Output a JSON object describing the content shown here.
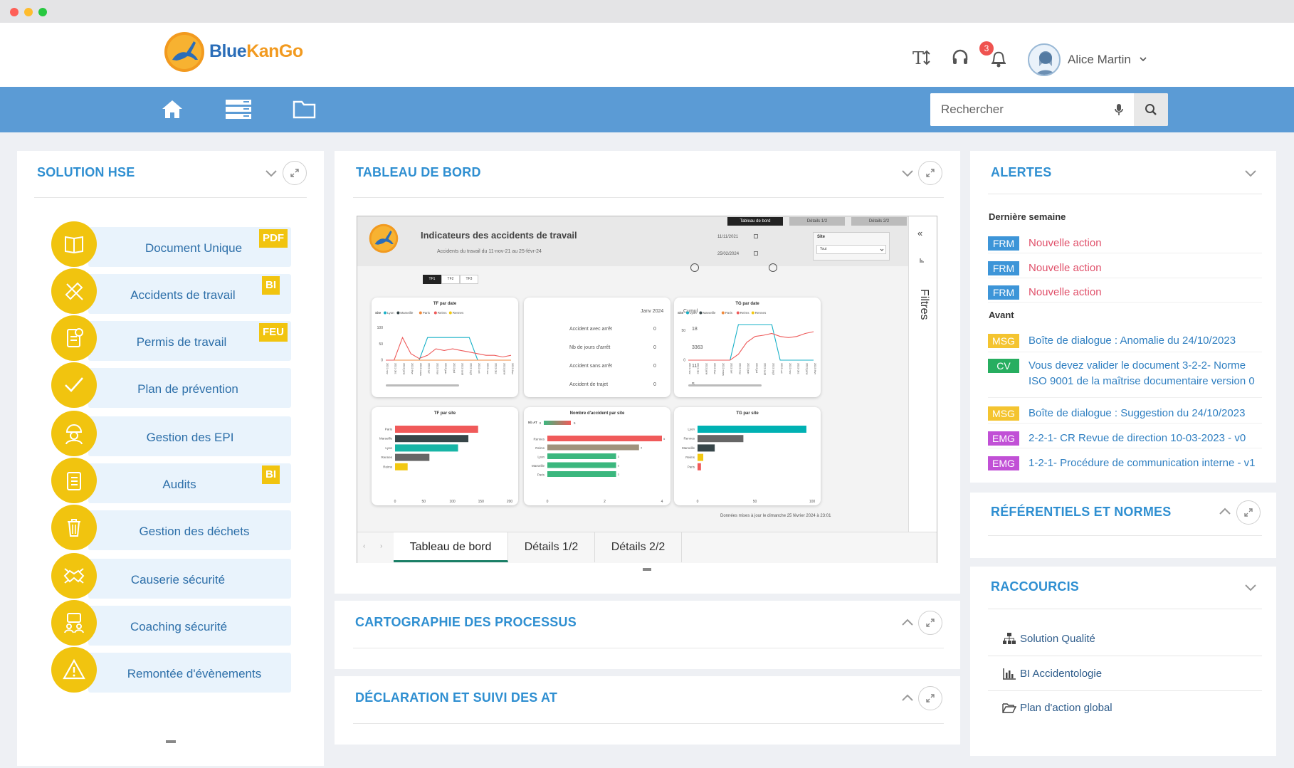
{
  "app": {
    "logo_text": "BlueKanGo"
  },
  "header": {
    "text_size_icon": "text-size-icon",
    "support_icon": "headset-icon",
    "notifications_count": "3",
    "user_name": "Alice Martin"
  },
  "search": {
    "placeholder": "Rechercher"
  },
  "hse": {
    "title": "SOLUTION HSE",
    "items": [
      {
        "label": "Document Unique",
        "badge": "PDF",
        "icon": "book-icon"
      },
      {
        "label": "Accidents de travail",
        "badge": "BI",
        "icon": "bandage-icon"
      },
      {
        "label": "Permis de travail",
        "badge": "FEU",
        "icon": "permit-icon"
      },
      {
        "label": "Plan de prévention",
        "badge": "",
        "icon": "check-icon"
      },
      {
        "label": "Gestion des EPI",
        "badge": "",
        "icon": "worker-helmet-icon"
      },
      {
        "label": "Audits",
        "badge": "BI",
        "icon": "clipboard-icon"
      },
      {
        "label": "Gestion des déchets",
        "badge": "",
        "icon": "trash-icon"
      },
      {
        "label": "Causerie sécurité",
        "badge": "",
        "icon": "handshake-icon"
      },
      {
        "label": "Coaching sécurité",
        "badge": "",
        "icon": "coaching-icon"
      },
      {
        "label": "Remontée d'évènements",
        "badge": "",
        "icon": "warning-icon"
      }
    ]
  },
  "dashboard": {
    "title": "TABLEAU DE BORD",
    "report_title": "Indicateurs des accidents de travail",
    "report_subtitle": "Accidents du travail du 11-nov-21 au 25-févr-24",
    "top_tabs": [
      "Tableau de bord",
      "Détails 1/2",
      "Détails 2/2"
    ],
    "date_from": "11/11/2021",
    "date_to": "25/02/2024",
    "site_label": "Site",
    "site_value": "Tout",
    "toggle": [
      "TF1",
      "TF2",
      "TF3"
    ],
    "filters_label": "Filtres",
    "legend": {
      "label": "Site",
      "items": [
        "Lyon",
        "Marseille",
        "Paris",
        "Reims",
        "Rennes"
      ]
    },
    "stats": {
      "headers": [
        "Janv 2024",
        "Cumul"
      ],
      "rows": [
        {
          "label": "Accident avec arrêt",
          "v1": "0",
          "v2": "18"
        },
        {
          "label": "Nb de jours d'arrêt",
          "v1": "0",
          "v2": "3363"
        },
        {
          "label": "Accident sans arrêt",
          "v1": "0",
          "v2": "11"
        },
        {
          "label": "Accident de trajet",
          "v1": "0",
          "v2": "5"
        }
      ]
    },
    "updated_note": "Données mises à jour le dimanche 25 février 2024 à 23:01",
    "bottom_tabs": [
      "Tableau de bord",
      "Détails 1/2",
      "Détails 2/2"
    ]
  },
  "chart_data": [
    {
      "type": "line",
      "title": "TF par date",
      "yticks": [
        "100",
        "50",
        "0"
      ],
      "x": [
        "2021 nov",
        "2021 déc",
        "2022 janv",
        "2022 févr",
        "2022 mars",
        "2022 avr",
        "2022 mai",
        "2022 juin",
        "2022 juil",
        "2022 août",
        "2022 sept",
        "2022 oct",
        "2022 nov",
        "2022 déc",
        "2023 janv",
        "2023 févr"
      ],
      "series": [
        {
          "name": "Lyon",
          "color": "#17b0c7",
          "values": [
            0,
            0,
            0,
            0,
            0,
            70,
            70,
            70,
            70,
            70,
            70,
            0,
            0,
            0,
            0,
            0
          ]
        },
        {
          "name": "Paris",
          "color": "#f08a3c",
          "values": [
            0,
            0,
            0,
            0,
            0,
            0,
            0,
            0,
            0,
            0,
            0,
            0,
            0,
            0,
            0,
            0
          ]
        },
        {
          "name": "Reims",
          "color": "#ee5a5a",
          "values": [
            0,
            0,
            70,
            20,
            5,
            15,
            35,
            30,
            35,
            30,
            25,
            20,
            15,
            15,
            10,
            15
          ]
        }
      ]
    },
    {
      "type": "line",
      "title": "TG par date",
      "yticks": [
        "50",
        "0"
      ],
      "x": [
        "2021 nov",
        "2021 déc",
        "2022 janv",
        "2022 févr",
        "2022 mars",
        "2022 avr",
        "2022 mai",
        "2022 juin",
        "2022 juil",
        "2022 août",
        "2022 sept",
        "2022 oct",
        "2022 nov",
        "2022 déc",
        "2023 janv",
        "2023 févr"
      ],
      "series": [
        {
          "name": "Lyon",
          "color": "#17b0c7",
          "values": [
            0,
            0,
            0,
            0,
            0,
            0,
            60,
            60,
            60,
            60,
            60,
            0,
            0,
            0,
            0,
            0
          ]
        },
        {
          "name": "Reims",
          "color": "#ee5a5a",
          "values": [
            0,
            0,
            0,
            0,
            0,
            0,
            10,
            30,
            40,
            42,
            45,
            40,
            38,
            40,
            45,
            48
          ]
        }
      ]
    },
    {
      "type": "bar",
      "title": "TF par site",
      "categories": [
        "Paris",
        "Marseille",
        "Lyon",
        "Rennes",
        "Reims"
      ],
      "values": [
        145,
        128,
        110,
        60,
        22
      ],
      "colors": [
        "#f05a5a",
        "#374649",
        "#17b5a6",
        "#666666",
        "#f2c811"
      ],
      "xticks": [
        "0",
        "50",
        "100",
        "150",
        "200"
      ],
      "xlim": [
        0,
        200
      ]
    },
    {
      "type": "bar",
      "title": "Nombre d'accident par site",
      "legend_label": "Nb AT",
      "legend_min": "3",
      "legend_max": "5",
      "categories": [
        "Rennes",
        "Reims",
        "Lyon",
        "Marseille",
        "Paris"
      ],
      "values": [
        5,
        4,
        3,
        3,
        3
      ],
      "colors": [
        "#f05a5a",
        "#a0937d",
        "#3bb77e",
        "#3bb77e",
        "#3bb77e"
      ],
      "xticks": [
        "0",
        "2",
        "4"
      ],
      "xlim": [
        0,
        5
      ]
    },
    {
      "type": "bar",
      "title": "TG par site",
      "categories": [
        "Lyon",
        "Rennes",
        "Marseille",
        "Reims",
        "Paris"
      ],
      "values": [
        95,
        40,
        15,
        5,
        3
      ],
      "colors": [
        "#00b1b3",
        "#666666",
        "#374649",
        "#f2c811",
        "#f05a5a"
      ],
      "xticks": [
        "0",
        "50",
        "100"
      ],
      "xlim": [
        0,
        100
      ]
    }
  ],
  "cartographie": {
    "title": "CARTOGRAPHIE DES PROCESSUS"
  },
  "declaration": {
    "title": "DÉCLARATION ET SUIVI DES AT"
  },
  "alerts": {
    "title": "ALERTES",
    "section_last_week": "Dernière semaine",
    "section_before": "Avant",
    "last_week": [
      {
        "tag": "FRM",
        "text": "Nouvelle action"
      },
      {
        "tag": "FRM",
        "text": "Nouvelle action"
      },
      {
        "tag": "FRM",
        "text": "Nouvelle action"
      }
    ],
    "before": [
      {
        "tag": "MSG",
        "text": "Boîte de dialogue : Anomalie du 24/10/2023"
      },
      {
        "tag": "CV",
        "text": "Vous devez valider le document 3-2-2- Norme",
        "text2": "ISO 9001 de la maîtrise documentaire version 0"
      },
      {
        "tag": "MSG",
        "text": "Boîte de dialogue : Suggestion du 24/10/2023"
      },
      {
        "tag": "EMG",
        "text": "2-2-1- CR Revue de direction 10-03-2023 - v0"
      },
      {
        "tag": "EMG",
        "text": "1-2-1- Procédure de communication interne - v1"
      }
    ],
    "colors": {
      "FRM": "#3d95d8",
      "MSG": "#f4c430",
      "CV": "#27ae60",
      "EMG": "#c150d6",
      "frm_text": "#e0506a",
      "other_text": "#2f7fc1"
    }
  },
  "referentiels": {
    "title": "RÉFÉRENTIELS ET NORMES"
  },
  "raccourcis": {
    "title": "RACCOURCIS",
    "items": [
      {
        "label": "Solution Qualité",
        "icon": "sitemap-icon"
      },
      {
        "label": "BI Accidentologie",
        "icon": "bar-chart-icon"
      },
      {
        "label": "Plan d'action global",
        "icon": "folder-open-icon"
      }
    ]
  }
}
